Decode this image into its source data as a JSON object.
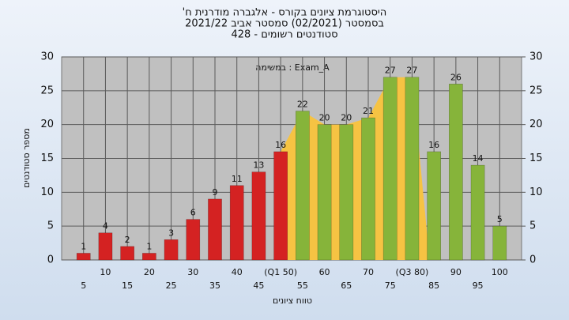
{
  "chart_data": {
    "type": "bar",
    "title": "היסטוגרמת ציונים בקורס - אלגברה מודרנית ח'",
    "subtitle": "בסמסטר (02/2021) סמסטר אביב 2021/22",
    "subtitle2": "סטודנטים רשומים - 428",
    "annotation": "Exam_A : במשימה",
    "xlabel": "טווח ציונים",
    "ylabel": "מספר סטודנטים",
    "categories": [
      "5",
      "10",
      "15",
      "20",
      "25",
      "30",
      "35",
      "40",
      "45",
      "(Q1 50)",
      "55",
      "60",
      "65",
      "70",
      "75",
      "(Q3 80)",
      "85",
      "90",
      "95",
      "100"
    ],
    "values": [
      1,
      4,
      2,
      1,
      3,
      6,
      9,
      11,
      13,
      16,
      22,
      20,
      20,
      21,
      27,
      27,
      16,
      26,
      14,
      5
    ],
    "colors": [
      "#d42222",
      "#d42222",
      "#d42222",
      "#d42222",
      "#d42222",
      "#d42222",
      "#d42222",
      "#d42222",
      "#d42222",
      "#d42222",
      "#86b43a",
      "#86b43a",
      "#86b43a",
      "#86b43a",
      "#86b43a",
      "#86b43a",
      "#86b43a",
      "#86b43a",
      "#86b43a",
      "#86b43a"
    ],
    "area_color": "#f6c343",
    "ylim": [
      0,
      30
    ],
    "yticks": [
      0,
      5,
      10,
      15,
      20,
      25,
      30
    ],
    "y2lim": [
      0,
      30
    ],
    "y2ticks": [
      0,
      5,
      10,
      15,
      20,
      25,
      30
    ],
    "grid": true
  }
}
